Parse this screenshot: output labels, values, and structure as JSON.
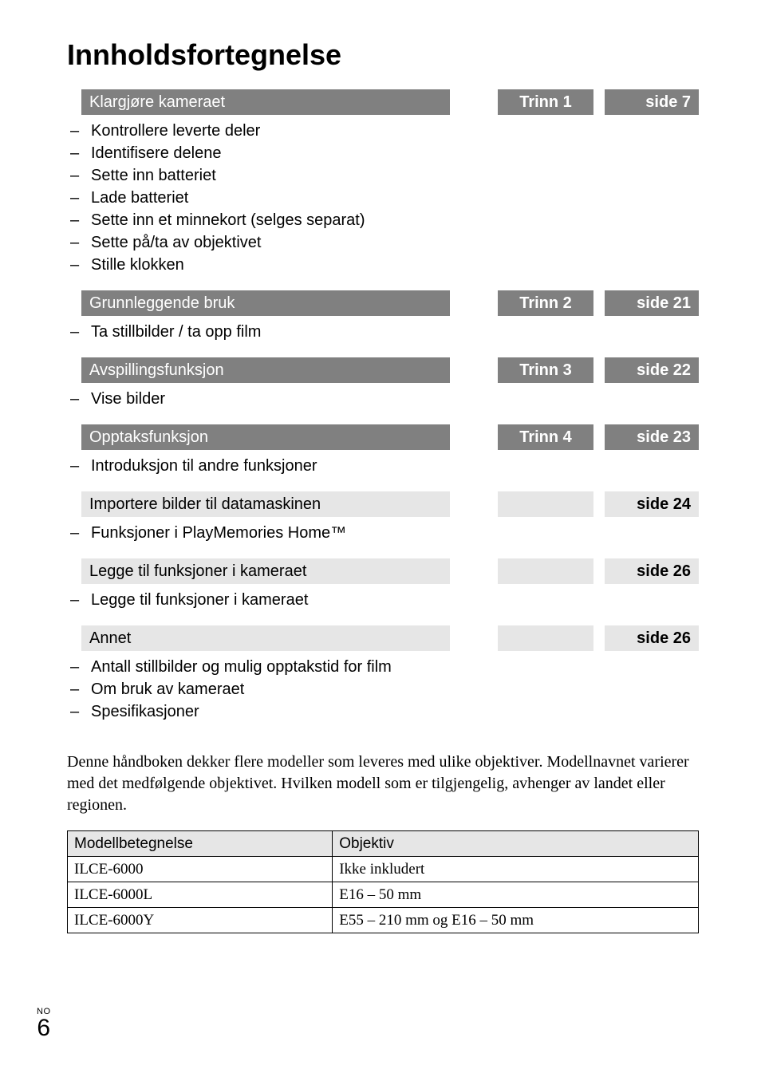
{
  "title": "Innholdsfortegnelse",
  "side_language_code": "NO",
  "side_page_number": "6",
  "colors": {
    "dark_bg": "#808080",
    "dark_fg": "#ffffff",
    "light_bg": "#e6e6e6",
    "light_fg": "#000000"
  },
  "sections": [
    {
      "title": "Klargjøre kameraet",
      "step": "Trinn 1",
      "page": "side 7",
      "style": "dark",
      "items": [
        "Kontrollere leverte deler",
        "Identifisere delene",
        "Sette inn batteriet",
        "Lade batteriet",
        "Sette inn et minnekort (selges separat)",
        "Sette på/ta av objektivet",
        "Stille klokken"
      ]
    },
    {
      "title": "Grunnleggende bruk",
      "step": "Trinn 2",
      "page": "side 21",
      "style": "dark",
      "items": [
        "Ta stillbilder / ta opp film"
      ]
    },
    {
      "title": "Avspillingsfunksjon",
      "step": "Trinn 3",
      "page": "side 22",
      "style": "dark",
      "items": [
        "Vise bilder"
      ]
    },
    {
      "title": "Opptaksfunksjon",
      "step": "Trinn 4",
      "page": "side 23",
      "style": "dark",
      "items": [
        "Introduksjon til andre funksjoner"
      ]
    },
    {
      "title": "Importere bilder til datamaskinen",
      "step": "",
      "page": "side 24",
      "style": "light",
      "items": [
        "Funksjoner i PlayMemories Home™"
      ]
    },
    {
      "title": "Legge til funksjoner i kameraet",
      "step": "",
      "page": "side 26",
      "style": "light",
      "items": [
        "Legge til funksjoner i kameraet"
      ]
    },
    {
      "title": "Annet",
      "step": "",
      "page": "side 26",
      "style": "light",
      "items": [
        "Antall stillbilder og mulig opptakstid for film",
        "Om bruk av kameraet",
        "Spesifikasjoner"
      ]
    }
  ],
  "paragraph": "Denne håndboken dekker flere modeller som leveres med ulike objektiver. Modellnavnet varierer med det medfølgende objektivet. Hvilken modell som er tilgjengelig, avhenger av landet eller regionen.",
  "models_table": {
    "columns": [
      "Modellbetegnelse",
      "Objektiv"
    ],
    "rows": [
      [
        "ILCE-6000",
        "Ikke inkludert"
      ],
      [
        "ILCE-6000L",
        "E16 – 50 mm"
      ],
      [
        "ILCE-6000Y",
        "E55 – 210 mm og E16 – 50 mm"
      ]
    ],
    "col_widths": [
      "42%",
      "58%"
    ]
  }
}
